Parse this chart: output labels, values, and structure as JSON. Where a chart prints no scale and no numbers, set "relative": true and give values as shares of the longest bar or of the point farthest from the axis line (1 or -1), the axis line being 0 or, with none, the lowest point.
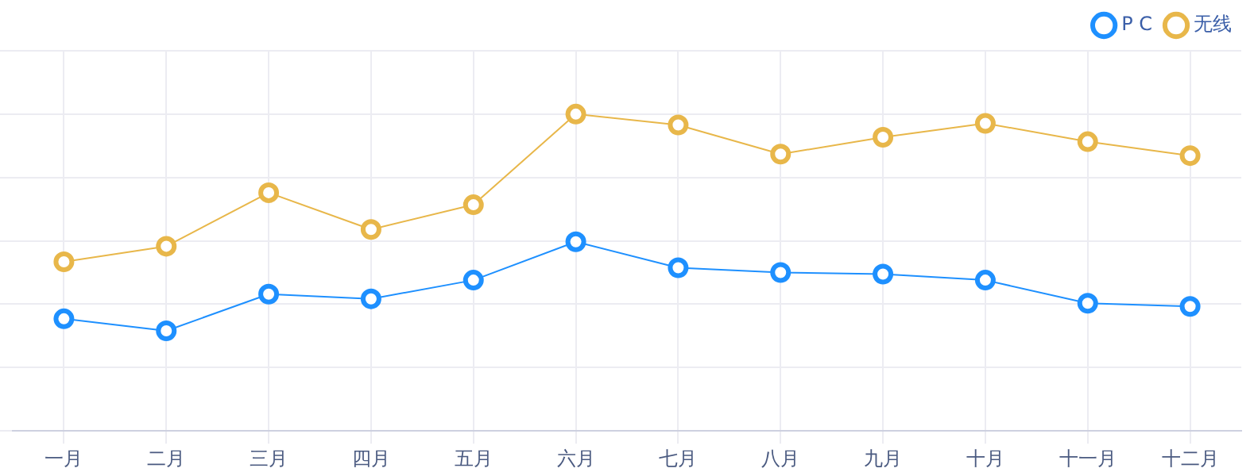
{
  "chart_data": {
    "type": "line",
    "relative": true,
    "categories": [
      "一月",
      "二月",
      "三月",
      "四月",
      "五月",
      "六月",
      "七月",
      "八月",
      "九月",
      "十月",
      "十一月",
      "十二月"
    ],
    "series": [
      {
        "name": "P C",
        "color": "#1e90ff",
        "values": [
          0.354,
          0.316,
          0.432,
          0.417,
          0.476,
          0.597,
          0.515,
          0.5,
          0.495,
          0.476,
          0.403,
          0.393
        ]
      },
      {
        "name": "无线",
        "color": "#e8b74a",
        "values": [
          0.534,
          0.583,
          0.752,
          0.636,
          0.714,
          1,
          0.966,
          0.874,
          0.927,
          0.971,
          0.913,
          0.869
        ]
      }
    ],
    "grid": true,
    "legend": "top right",
    "marker": "circle",
    "line_style": "solid"
  }
}
